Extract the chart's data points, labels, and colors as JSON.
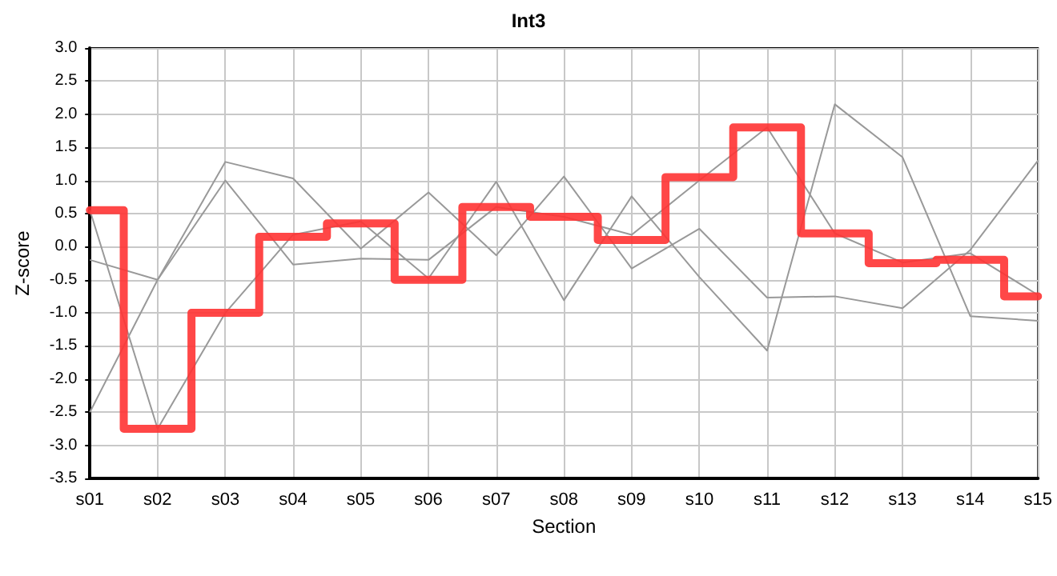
{
  "chart_data": {
    "type": "line",
    "title": "Int3",
    "xlabel": "Section",
    "ylabel": "Z-score",
    "categories": [
      "s01",
      "s02",
      "s03",
      "s04",
      "s05",
      "s06",
      "s07",
      "s08",
      "s09",
      "s10",
      "s11",
      "s12",
      "s13",
      "s14",
      "s15"
    ],
    "series": [
      {
        "color": "#999999",
        "values": [
          -0.2,
          -0.5,
          1.28,
          1.03,
          -0.03,
          0.82,
          -0.13,
          1.06,
          -0.33,
          0.27,
          -0.77,
          -0.75,
          -0.93,
          -0.05,
          1.3
        ]
      },
      {
        "color": "#999999",
        "values": [
          -2.5,
          -0.5,
          1.0,
          -0.27,
          -0.18,
          -0.2,
          0.6,
          0.45,
          0.18,
          1.0,
          1.8,
          0.2,
          -0.24,
          -0.1,
          -0.73
        ]
      },
      {
        "color": "#999999",
        "values": [
          0.55,
          -2.75,
          -1.0,
          0.18,
          0.38,
          -0.48,
          0.98,
          -0.81,
          0.76,
          -0.46,
          -1.57,
          2.15,
          1.35,
          -1.05,
          -1.12
        ]
      },
      {
        "type": "step",
        "color": "#ff3333",
        "values": [
          0.55,
          -2.75,
          -1.0,
          0.15,
          0.35,
          -0.5,
          0.6,
          0.45,
          0.1,
          1.05,
          1.8,
          0.2,
          -0.25,
          -0.2,
          -0.75
        ]
      }
    ],
    "ylim": [
      -3.5,
      3.0
    ],
    "yticks": [
      -3.5,
      {
        "value": -3,
        "label": "-3.0"
      },
      -2.5,
      {
        "value": -2,
        "label": "-2.0"
      },
      -1.5,
      {
        "value": -1,
        "label": "-1.0"
      },
      -0.5,
      {
        "value": 0,
        "label": "0.0"
      },
      0.5,
      {
        "value": 1,
        "label": "1.0"
      },
      1.5,
      {
        "value": 2,
        "label": "2.0"
      },
      2.5,
      {
        "value": 3,
        "label": "3.0"
      }
    ],
    "grid": true,
    "marker": "none",
    "line_style": "solid"
  }
}
